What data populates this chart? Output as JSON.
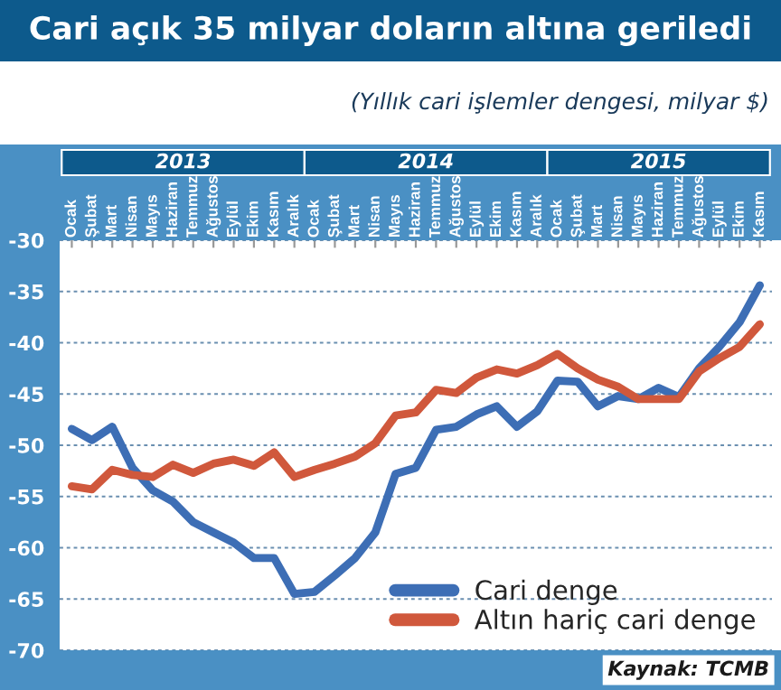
{
  "chart_data": {
    "type": "line",
    "title": "Cari açık 35 milyar doların altına geriledi",
    "subtitle": "(Yıllık cari işlemler dengesi, milyar $)",
    "categories": [
      "Ocak",
      "Şubat",
      "Mart",
      "Nisan",
      "Mayıs",
      "Haziran",
      "Temmuz",
      "Ağustos",
      "Eylül",
      "Ekim",
      "Kasım",
      "Aralık",
      "Ocak",
      "Şubat",
      "Mart",
      "Nisan",
      "Mayıs",
      "Haziran",
      "Temmuz",
      "Ağustos",
      "Eylül",
      "Ekim",
      "Kasım",
      "Aralık",
      "Ocak",
      "Şubat",
      "Mart",
      "Nisan",
      "Mayıs",
      "Haziran",
      "Temmuz",
      "Ağustos",
      "Eylül",
      "Ekim",
      "Kasım"
    ],
    "series": [
      {
        "name": "Cari denge",
        "color": "#3d6eb5",
        "values": [
          -48.4,
          -49.5,
          -48.2,
          -52.2,
          -54.4,
          -55.5,
          -57.5,
          -58.5,
          -59.5,
          -61,
          -61,
          -64.5,
          -64.3,
          -62.7,
          -61,
          -58.5,
          -52.8,
          -52.2,
          -48.5,
          -48.2,
          -47,
          -46.2,
          -48.2,
          -46.7,
          -43.7,
          -43.8,
          -46.2,
          -45.2,
          -45.5,
          -44.4,
          -45.3,
          -42.5,
          -40.4,
          -38,
          -34.4
        ]
      },
      {
        "name": "Altın hariç cari denge",
        "color": "#d0583c",
        "values": [
          -54,
          -54.3,
          -52.4,
          -52.9,
          -53.1,
          -51.9,
          -52.7,
          -51.8,
          -51.4,
          -52,
          -50.7,
          -53.1,
          -52.4,
          -51.8,
          -51.1,
          -49.8,
          -47.1,
          -46.8,
          -44.6,
          -44.9,
          -43.4,
          -42.6,
          -43,
          -42.2,
          -41.1,
          -42.5,
          -43.6,
          -44.3,
          -45.5,
          -45.5,
          -45.5,
          -42.8,
          -41.5,
          -40.4,
          -38.2
        ]
      }
    ],
    "ylim": [
      -70,
      -30
    ],
    "yticks": [
      -30,
      -35,
      -40,
      -45,
      -50,
      -55,
      -60,
      -65,
      -70
    ],
    "grid": "y",
    "legend": "bottom right",
    "line_style": "solid",
    "marker": "none",
    "annotations": [
      "2013",
      "2014",
      "2015",
      "Kaynak: TCMB"
    ]
  }
}
